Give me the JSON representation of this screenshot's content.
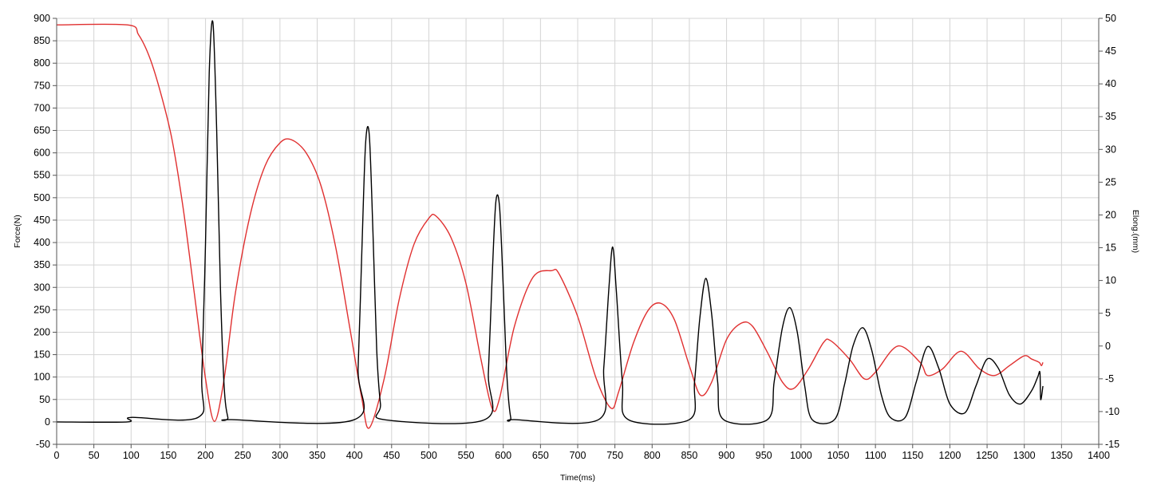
{
  "chart_data": {
    "type": "line",
    "title": "",
    "xlabel": "Time(ms)",
    "ylabel_left": "Force(N)",
    "ylabel_right": "Elong.(mm)",
    "xlim": [
      0,
      1400
    ],
    "ylim_left": [
      -50,
      900
    ],
    "ylim_right": [
      -15,
      50
    ],
    "x_ticks": [
      0,
      50,
      100,
      150,
      200,
      250,
      300,
      350,
      400,
      450,
      500,
      550,
      600,
      650,
      700,
      750,
      800,
      850,
      900,
      950,
      1000,
      1050,
      1100,
      1150,
      1200,
      1250,
      1300,
      1350,
      1400
    ],
    "y_ticks_left": [
      -50,
      0,
      50,
      100,
      150,
      200,
      250,
      300,
      350,
      400,
      450,
      500,
      550,
      600,
      650,
      700,
      750,
      800,
      850,
      900
    ],
    "y_ticks_right": [
      -15,
      -10,
      -5,
      0,
      5,
      10,
      15,
      20,
      25,
      30,
      35,
      40,
      45,
      50
    ],
    "grid": true,
    "legend": "none",
    "colors": {
      "force": "#000000",
      "elongation": "#e03030",
      "grid": "#d4d4d4",
      "axis": "#555555"
    },
    "series": [
      {
        "axis": "left",
        "color": "#000000",
        "x": [
          0,
          95,
          100,
          190,
          195,
          200,
          205,
          210,
          215,
          220,
          225,
          230,
          235,
          400,
          405,
          410,
          415,
          420,
          425,
          430,
          435,
          440,
          575,
          580,
          585,
          590,
          595,
          600,
          605,
          610,
          615,
          728,
          735,
          742,
          747,
          752,
          760,
          768,
          850,
          857,
          864,
          872,
          880,
          888,
          896,
          955,
          964,
          975,
          985,
          995,
          1005,
          1015,
          1045,
          1058,
          1070,
          1083,
          1095,
          1108,
          1120,
          1140,
          1155,
          1170,
          1185,
          1200,
          1220,
          1235,
          1250,
          1265,
          1280,
          1295,
          1310,
          1318,
          1321,
          1322,
          1325
        ],
        "y": [
          0,
          0,
          10,
          10,
          100,
          400,
          780,
          890,
          650,
          300,
          80,
          10,
          5,
          5,
          120,
          380,
          620,
          640,
          420,
          160,
          40,
          5,
          5,
          110,
          320,
          490,
          480,
          300,
          100,
          10,
          5,
          5,
          120,
          300,
          390,
          290,
          90,
          5,
          5,
          90,
          230,
          320,
          240,
          90,
          5,
          5,
          90,
          210,
          255,
          200,
          80,
          5,
          5,
          80,
          170,
          210,
          160,
          60,
          10,
          10,
          90,
          168,
          120,
          40,
          20,
          80,
          140,
          120,
          60,
          40,
          70,
          100,
          110,
          50,
          80
        ]
      },
      {
        "axis": "right",
        "color": "#e03030",
        "x": [
          0,
          95,
          110,
          125,
          140,
          155,
          170,
          185,
          200,
          212,
          225,
          240,
          260,
          280,
          300,
          315,
          335,
          355,
          375,
          395,
          410,
          420,
          440,
          460,
          480,
          500,
          510,
          530,
          550,
          570,
          585,
          595,
          615,
          640,
          665,
          675,
          700,
          725,
          745,
          755,
          775,
          795,
          812,
          830,
          850,
          865,
          880,
          900,
          920,
          935,
          955,
          975,
          990,
          1010,
          1030,
          1040,
          1065,
          1085,
          1100,
          1130,
          1160,
          1170,
          1190,
          1215,
          1240,
          1260,
          1280,
          1300,
          1310,
          1320,
          1323,
          1325
        ],
        "y": [
          49,
          49,
          47.5,
          44,
          38.5,
          31.5,
          21,
          8,
          -5,
          -11.5,
          -5,
          8,
          20,
          27.5,
          31,
          31.5,
          29.5,
          24.5,
          15,
          2,
          -8,
          -12.5,
          -5,
          7,
          15.5,
          19.5,
          19.8,
          16.5,
          9.5,
          -2,
          -9.5,
          -8,
          3,
          10.5,
          11.5,
          11,
          4.5,
          -5,
          -9.5,
          -7,
          0.5,
          5.5,
          6.5,
          4,
          -3,
          -7.5,
          -5.5,
          1,
          3.5,
          3,
          -1,
          -5.5,
          -6.5,
          -3.5,
          0.5,
          0.8,
          -2,
          -5,
          -4,
          0,
          -2.5,
          -4.5,
          -3.5,
          -0.8,
          -3.5,
          -4.5,
          -3,
          -1.5,
          -2,
          -2.5,
          -3,
          -2.5
        ]
      }
    ]
  }
}
